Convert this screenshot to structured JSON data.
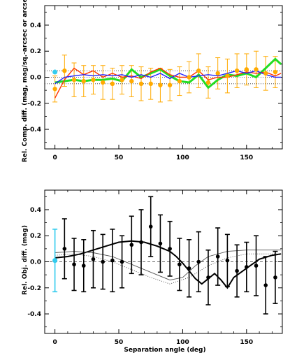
{
  "chart_data": [
    {
      "type": "line",
      "ylabel": "Rel. Comp. diff. (mag, mag/sq.-arcsec or arcsec)",
      "xlabel": "",
      "xlim": [
        -8,
        178
      ],
      "ylim": [
        -0.55,
        0.55
      ],
      "xticks": [
        0,
        50,
        100,
        150
      ],
      "xtick_labels": [
        "0",
        "50",
        "100",
        "150"
      ],
      "yticks": [
        -0.4,
        -0.2,
        0.0,
        0.2,
        0.4
      ],
      "ytick_labels": [
        "-0.4",
        "-0.2",
        "0.0",
        "0.2",
        "0.4"
      ],
      "reference_lines": [
        {
          "y": 0.0,
          "style": "dotted"
        },
        {
          "y": 0.05,
          "style": "dotted"
        },
        {
          "y": -0.05,
          "style": "dotted"
        }
      ],
      "series": [
        {
          "style": "green-thick",
          "color": "#22dd22",
          "x": [
            0,
            7.5,
            15,
            22.5,
            30,
            37.5,
            45,
            52.5,
            60,
            67.5,
            75,
            82.5,
            90,
            97.5,
            105,
            112.5,
            120,
            127.5,
            135,
            142.5,
            150,
            157.5,
            165,
            172.5,
            177
          ],
          "y": [
            -0.04,
            -0.03,
            -0.02,
            -0.03,
            -0.02,
            -0.02,
            -0.01,
            -0.03,
            0.06,
            0.0,
            0.03,
            0.06,
            0.01,
            -0.03,
            -0.04,
            0.02,
            -0.08,
            -0.02,
            0.02,
            0.01,
            0.03,
            0.0,
            0.07,
            0.14,
            0.1
          ]
        },
        {
          "style": "red",
          "color": "#ff3300",
          "x": [
            0,
            7.5,
            15,
            22.5,
            30,
            37.5,
            45,
            52.5,
            60,
            67.5,
            75,
            82.5,
            90,
            97.5,
            105,
            112.5,
            120,
            127.5,
            135,
            142.5,
            150,
            157.5,
            165,
            172.5,
            177
          ],
          "y": [
            -0.16,
            -0.02,
            0.07,
            0.02,
            0.05,
            0.0,
            0.03,
            0.0,
            0.01,
            -0.01,
            0.04,
            0.07,
            0.02,
            0.0,
            0.0,
            0.05,
            -0.02,
            0.0,
            0.0,
            0.02,
            0.04,
            0.03,
            0.04,
            0.01,
            0.03
          ]
        },
        {
          "style": "blue",
          "color": "#2222ff",
          "x": [
            0,
            7.5,
            15,
            22.5,
            30,
            37.5,
            45,
            52.5,
            60,
            67.5,
            75,
            82.5,
            90,
            97.5,
            105,
            112.5,
            120,
            127.5,
            135,
            142.5,
            150,
            157.5,
            165,
            172.5,
            177
          ],
          "y": [
            -0.05,
            0.0,
            0.01,
            0.02,
            0.01,
            0.02,
            0.01,
            0.02,
            0.0,
            0.02,
            0.0,
            0.03,
            -0.01,
            0.03,
            0.0,
            0.01,
            0.02,
            0.01,
            0.03,
            0.05,
            0.03,
            0.05,
            0.02,
            0.0,
            0.0
          ]
        }
      ],
      "points": {
        "color": "#ffaa00",
        "x": [
          0,
          7.5,
          15,
          22.5,
          30,
          37.5,
          45,
          52.5,
          60,
          67.5,
          75,
          82.5,
          90,
          97.5,
          105,
          112.5,
          120,
          127.5,
          135,
          142.5,
          150,
          157.5,
          165,
          172.5
        ],
        "y": [
          -0.09,
          0.05,
          -0.02,
          -0.03,
          -0.02,
          -0.04,
          -0.05,
          -0.02,
          -0.03,
          -0.05,
          -0.05,
          -0.06,
          -0.06,
          -0.03,
          0.0,
          0.05,
          -0.04,
          0.03,
          0.01,
          0.05,
          0.06,
          0.06,
          0.03,
          0.04
        ],
        "err": [
          0.1,
          0.12,
          0.13,
          0.12,
          0.11,
          0.13,
          0.12,
          0.11,
          0.12,
          0.13,
          0.12,
          0.13,
          0.12,
          0.11,
          0.12,
          0.13,
          0.12,
          0.12,
          0.13,
          0.13,
          0.12,
          0.14,
          0.13,
          0.12
        ]
      },
      "highlight_point": {
        "x": 0,
        "y": 0.04,
        "color": "#33ccee"
      }
    },
    {
      "type": "scatter",
      "xlabel": "Separation angle (deg)",
      "ylabel": "Rel. Obj. diff. (mag)",
      "xlim": [
        -8,
        178
      ],
      "ylim": [
        -0.55,
        0.55
      ],
      "xticks": [
        0,
        50,
        100,
        150
      ],
      "xtick_labels": [
        "0",
        "50",
        "100",
        "150"
      ],
      "yticks": [
        -0.4,
        -0.2,
        0.0,
        0.2,
        0.4
      ],
      "ytick_labels": [
        "-0.4",
        "-0.2",
        "0.0",
        "0.2",
        "0.4"
      ],
      "reference_lines": [
        {
          "y": 0.0,
          "style": "dashed"
        }
      ],
      "points": {
        "color": "#000000",
        "x": [
          7.5,
          15,
          22.5,
          30,
          37.5,
          45,
          52.5,
          60,
          67.5,
          75,
          82.5,
          90,
          97.5,
          105,
          112.5,
          120,
          127.5,
          135,
          142.5,
          150,
          157.5,
          165,
          172.5
        ],
        "y": [
          0.1,
          -0.02,
          -0.03,
          0.02,
          0.0,
          0.01,
          0.0,
          0.13,
          0.15,
          0.27,
          0.14,
          0.1,
          -0.02,
          -0.05,
          0.0,
          -0.12,
          0.04,
          0.01,
          -0.07,
          -0.04,
          -0.03,
          -0.18,
          -0.12
        ],
        "err": [
          0.23,
          0.2,
          0.2,
          0.22,
          0.21,
          0.24,
          0.2,
          0.22,
          0.25,
          0.23,
          0.22,
          0.21,
          0.2,
          0.22,
          0.23,
          0.21,
          0.22,
          0.2,
          0.2,
          0.19,
          0.23,
          0.22,
          0.2
        ]
      },
      "highlight_point": {
        "x": 0,
        "y": 0.01,
        "err": 0.24,
        "color": "#33ccee"
      },
      "curves": [
        {
          "style": "solid-thick",
          "color": "#000000",
          "x": [
            0,
            10,
            20,
            30,
            40,
            50,
            60,
            70,
            80,
            90,
            95,
            100,
            105,
            110,
            115,
            120,
            125,
            130,
            135,
            140,
            150,
            160,
            170,
            177
          ],
          "y": [
            0.03,
            0.04,
            0.06,
            0.09,
            0.12,
            0.15,
            0.16,
            0.15,
            0.12,
            0.08,
            0.04,
            -0.01,
            -0.07,
            -0.13,
            -0.17,
            -0.13,
            -0.09,
            -0.14,
            -0.2,
            -0.12,
            -0.05,
            0.02,
            0.05,
            0.06
          ]
        },
        {
          "style": "thin",
          "color": "#555555",
          "x": [
            0,
            15,
            30,
            45,
            60,
            75,
            90,
            100,
            110,
            120,
            135,
            150,
            165,
            177
          ],
          "y": [
            0.07,
            0.08,
            0.07,
            0.04,
            -0.02,
            -0.08,
            -0.14,
            -0.12,
            -0.03,
            0.04,
            0.08,
            0.09,
            0.09,
            0.09
          ]
        },
        {
          "style": "dotted",
          "color": "#555555",
          "x": [
            0,
            15,
            30,
            45,
            60,
            75,
            90,
            105,
            120,
            135,
            150,
            165,
            177
          ],
          "y": [
            0.05,
            0.06,
            0.04,
            0.0,
            -0.06,
            -0.12,
            -0.17,
            -0.12,
            -0.03,
            0.03,
            0.06,
            0.06,
            0.06
          ]
        }
      ]
    }
  ]
}
